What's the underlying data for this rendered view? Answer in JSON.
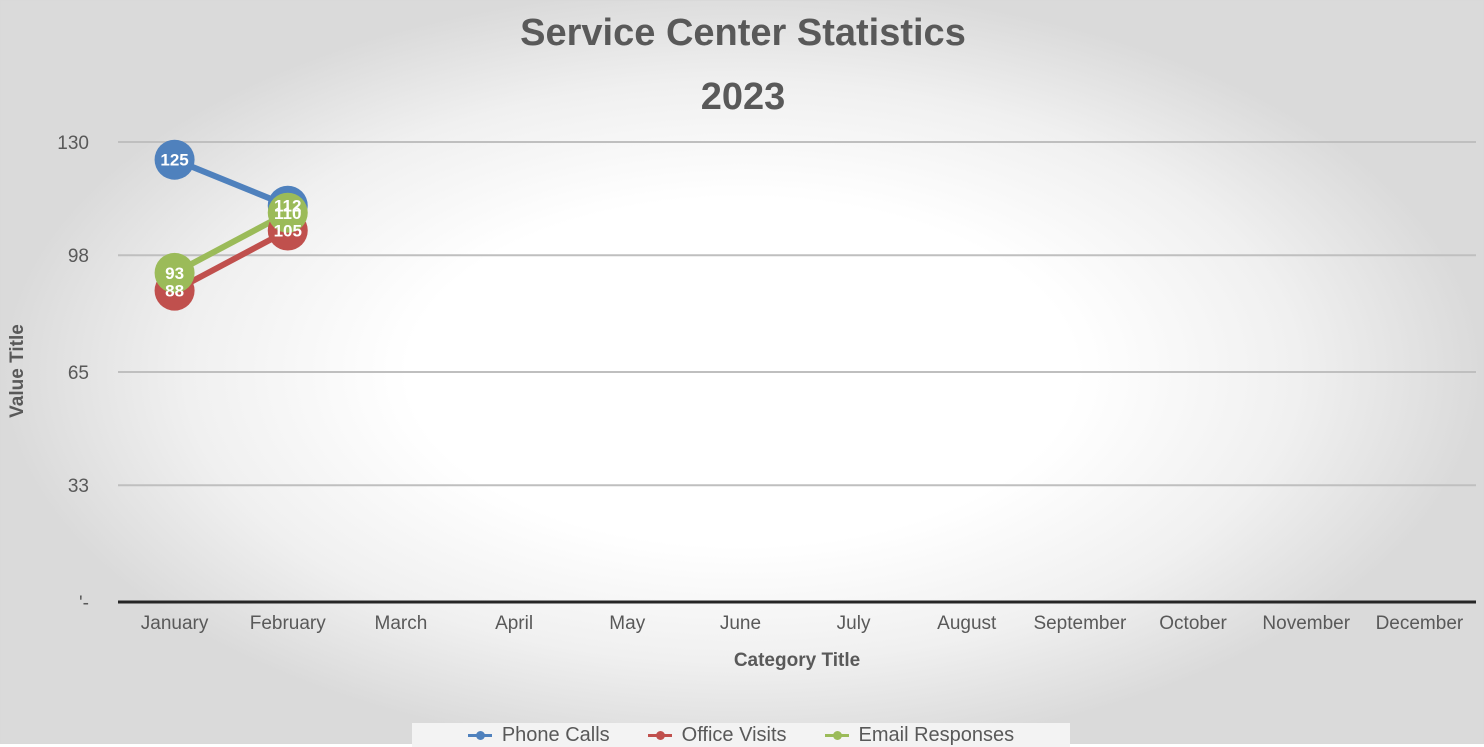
{
  "chart_data": {
    "type": "line",
    "title": "Service Center Statistics",
    "subtitle": "2023",
    "xlabel": "Category Title",
    "ylabel": "Value Title",
    "categories": [
      "January",
      "February",
      "March",
      "April",
      "May",
      "June",
      "July",
      "August",
      "September",
      "October",
      "November",
      "December"
    ],
    "y_ticks": [
      {
        "value": 0,
        "label": "'-"
      },
      {
        "value": 33,
        "label": "33"
      },
      {
        "value": 65,
        "label": "65"
      },
      {
        "value": 98,
        "label": "98"
      },
      {
        "value": 130,
        "label": "130"
      }
    ],
    "ylim": [
      0,
      130
    ],
    "grid": true,
    "legend_position": "bottom",
    "series": [
      {
        "name": "Phone Calls",
        "color": "#4f81bd",
        "values": [
          125,
          112,
          null,
          null,
          null,
          null,
          null,
          null,
          null,
          null,
          null,
          null
        ]
      },
      {
        "name": "Office Visits",
        "color": "#c0504d",
        "values": [
          88,
          105,
          null,
          null,
          null,
          null,
          null,
          null,
          null,
          null,
          null,
          null
        ]
      },
      {
        "name": "Email Responses",
        "color": "#9bbb59",
        "values": [
          93,
          110,
          null,
          null,
          null,
          null,
          null,
          null,
          null,
          null,
          null,
          null
        ]
      }
    ]
  }
}
